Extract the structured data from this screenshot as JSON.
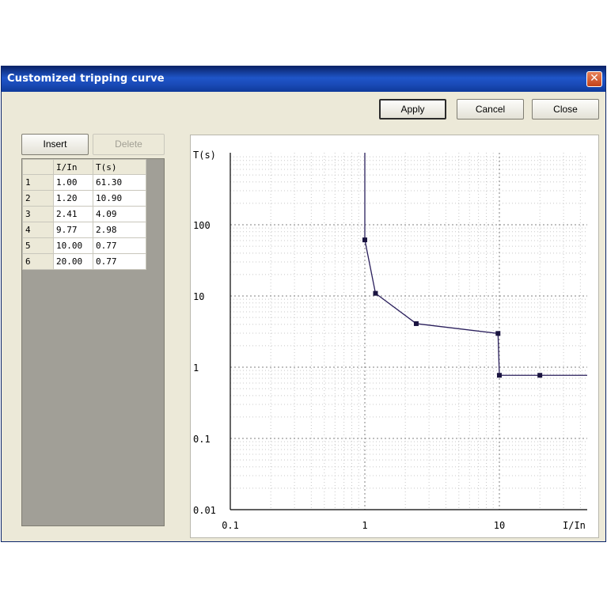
{
  "window": {
    "title": "Customized tripping curve",
    "close_glyph": "✕"
  },
  "toolbar": {
    "apply_label": "Apply",
    "cancel_label": "Cancel",
    "close_label": "Close"
  },
  "table_controls": {
    "insert_label": "Insert",
    "delete_label": "Delete"
  },
  "table": {
    "columns": [
      "",
      "I/In",
      "T(s)"
    ],
    "rows": [
      {
        "n": "1",
        "i": "1.00",
        "t": "61.30"
      },
      {
        "n": "2",
        "i": "1.20",
        "t": "10.90"
      },
      {
        "n": "3",
        "i": "2.41",
        "t": "4.09"
      },
      {
        "n": "4",
        "i": "9.77",
        "t": "2.98"
      },
      {
        "n": "5",
        "i": "10.00",
        "t": "0.77"
      },
      {
        "n": "6",
        "i": "20.00",
        "t": "0.77"
      }
    ]
  },
  "chart_data": {
    "type": "line",
    "xlabel": "I/In",
    "ylabel": "T(s)",
    "x_scale": "log",
    "y_scale": "log",
    "xlim": [
      0.1,
      40
    ],
    "ylim": [
      0.01,
      1000
    ],
    "x_ticks": [
      {
        "v": 0.1,
        "label": "0.1"
      },
      {
        "v": 1,
        "label": "1"
      },
      {
        "v": 10,
        "label": "10"
      }
    ],
    "y_ticks": [
      {
        "v": 0.01,
        "label": "0.01"
      },
      {
        "v": 0.1,
        "label": "0.1"
      },
      {
        "v": 1,
        "label": "1"
      },
      {
        "v": 10,
        "label": "10"
      },
      {
        "v": 100,
        "label": "100"
      }
    ],
    "grid": true,
    "series": [
      {
        "color": "#2a1f5c",
        "points": [
          {
            "x": 1.0,
            "y": 61.3
          },
          {
            "x": 1.2,
            "y": 10.9
          },
          {
            "x": 2.41,
            "y": 4.09
          },
          {
            "x": 9.77,
            "y": 2.98
          },
          {
            "x": 10.0,
            "y": 0.77
          },
          {
            "x": 20.0,
            "y": 0.77
          }
        ],
        "extends_up_at_x": 1.0,
        "extends_right_at_y": 0.77
      }
    ]
  }
}
